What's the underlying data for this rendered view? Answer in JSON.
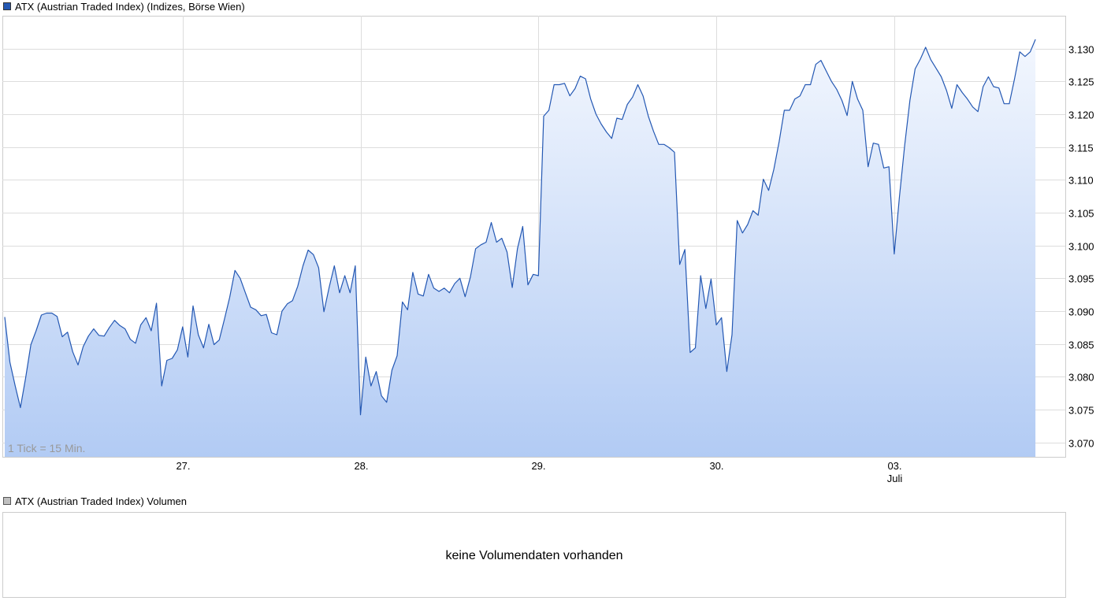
{
  "chart_data": {
    "type": "area-line",
    "series": [
      {
        "name": "ATX (Austrian Traded Index) (Indizes, Börse Wien)",
        "color": "#2458b3",
        "fill_top": "#f3f7fe",
        "fill_bottom": "#b2cbf4",
        "values": [
          3089.1,
          3082.2,
          3078.6,
          3075.3,
          3079.8,
          3084.9,
          3087,
          3089.4,
          3089.7,
          3089.7,
          3089.2,
          3086.1,
          3086.8,
          3083.8,
          3081.8,
          3084.6,
          3086.2,
          3087.3,
          3086.3,
          3086.2,
          3087.5,
          3088.6,
          3087.8,
          3087.3,
          3085.7,
          3085.1,
          3087.9,
          3089,
          3087,
          3091.2,
          3078.6,
          3082.5,
          3082.8,
          3084.1,
          3087.6,
          3083,
          3090.8,
          3086.4,
          3084.4,
          3088,
          3084.9,
          3085.6,
          3088.8,
          3092.1,
          3096.2,
          3095,
          3092.8,
          3090.6,
          3090.2,
          3089.3,
          3089.5,
          3086.7,
          3086.4,
          3090,
          3091.1,
          3091.6,
          3093.8,
          3096.9,
          3099.3,
          3098.6,
          3096.6,
          3089.9,
          3093.6,
          3096.9,
          3092.8,
          3095.4,
          3092.8,
          3096.9,
          3074.2,
          3083,
          3078.6,
          3080.8,
          3077.1,
          3076.1,
          3081,
          3083.2,
          3091.4,
          3090.2,
          3095.9,
          3092.6,
          3092.3,
          3095.6,
          3093.5,
          3093,
          3093.5,
          3092.8,
          3094.2,
          3095,
          3092.2,
          3095.2,
          3099.5,
          3100.1,
          3100.5,
          3103.5,
          3100.5,
          3101.1,
          3099,
          3093.6,
          3099.5,
          3102.9,
          3094,
          3095.6,
          3095.4,
          3119.7,
          3120.6,
          3124.5,
          3124.5,
          3124.7,
          3122.8,
          3123.9,
          3125.8,
          3125.4,
          3122.3,
          3120,
          3118.5,
          3117.3,
          3116.3,
          3119.4,
          3119.2,
          3121.5,
          3122.6,
          3124.5,
          3122.8,
          3119.7,
          3117.4,
          3115.4,
          3115.4,
          3114.9,
          3114.2,
          3097.1,
          3099.4,
          3083.7,
          3084.4,
          3095.4,
          3090.4,
          3094.9,
          3087.9,
          3089,
          3080.8,
          3086.4,
          3103.8,
          3101.9,
          3103.2,
          3105.3,
          3104.6,
          3110.1,
          3108.4,
          3111.6,
          3115.8,
          3120.6,
          3120.6,
          3122.3,
          3122.8,
          3124.5,
          3124.5,
          3127.6,
          3128.2,
          3126.6,
          3125,
          3123.8,
          3122.1,
          3119.8,
          3125,
          3122.3,
          3120.6,
          3112,
          3115.6,
          3115.4,
          3111.8,
          3112,
          3098.7,
          3107.4,
          3115.2,
          3122.1,
          3126.9,
          3128.4,
          3130.2,
          3128.3,
          3127,
          3125.7,
          3123.6,
          3120.9,
          3124.5,
          3123.3,
          3122.3,
          3121.1,
          3120.4,
          3124.2,
          3125.7,
          3124.2,
          3124,
          3121.6,
          3121.6,
          3125.4,
          3129.5,
          3128.8,
          3129.5,
          3131.4
        ]
      }
    ],
    "x": [
      0,
      1,
      2,
      3,
      4,
      5,
      6,
      7,
      8,
      9,
      10,
      11,
      12,
      13,
      14,
      15,
      16,
      17,
      18,
      19,
      20,
      21,
      22,
      23,
      24,
      25,
      26,
      27,
      28,
      29,
      30,
      31,
      32,
      33,
      34,
      35,
      36,
      37,
      38,
      39,
      40,
      41,
      42,
      43,
      44,
      45,
      46,
      47,
      48,
      49,
      50,
      51,
      52,
      53,
      54,
      55,
      56,
      57,
      58,
      59,
      60,
      61,
      62,
      63,
      64,
      65,
      66,
      67,
      68,
      69,
      70,
      71,
      72,
      73,
      74,
      75,
      76,
      77,
      78,
      79,
      80,
      81,
      82,
      83,
      84,
      85,
      86,
      87,
      88,
      89,
      90,
      91,
      92,
      93,
      94,
      95,
      96,
      97,
      98,
      99,
      100,
      101,
      102,
      103,
      104,
      105,
      106,
      107,
      108,
      109,
      110,
      111,
      112,
      113,
      114,
      115,
      116,
      117,
      118,
      119,
      120,
      121,
      122,
      123,
      124,
      125,
      126,
      127,
      128,
      129,
      130,
      131,
      132,
      133,
      134,
      135,
      136,
      137,
      138,
      139,
      140,
      141,
      142,
      143,
      144,
      145,
      146,
      147,
      148,
      149,
      150,
      151,
      152,
      153,
      154,
      155,
      156,
      157,
      158,
      159,
      160,
      161,
      162,
      163,
      164,
      165,
      166,
      167,
      168,
      169,
      170,
      171,
      172,
      173,
      174,
      175,
      176,
      177,
      178,
      179,
      180,
      181,
      182,
      183,
      184,
      185,
      186,
      187,
      188,
      189,
      190,
      191,
      192,
      193,
      194,
      195,
      196,
      197
    ],
    "xlim": [
      -0.45,
      202.7
    ],
    "xticks": [
      {
        "value": 34,
        "label": "27."
      },
      {
        "value": 68,
        "label": "28."
      },
      {
        "value": 102,
        "label": "29."
      },
      {
        "value": 136,
        "label": "30."
      },
      {
        "value": 170,
        "label": "03."
      }
    ],
    "month_label": "Juli",
    "ylim": [
      3067.8,
      3135
    ],
    "yticks": [
      {
        "value": 3070,
        "label": "3.070"
      },
      {
        "value": 3075,
        "label": "3.075"
      },
      {
        "value": 3080,
        "label": "3.080"
      },
      {
        "value": 3085,
        "label": "3.085"
      },
      {
        "value": 3090,
        "label": "3.090"
      },
      {
        "value": 3095,
        "label": "3.095"
      },
      {
        "value": 3100,
        "label": "3.100"
      },
      {
        "value": 3105,
        "label": "3.105"
      },
      {
        "value": 3110,
        "label": "3.110"
      },
      {
        "value": 3115,
        "label": "3.115"
      },
      {
        "value": 3120,
        "label": "3.120"
      },
      {
        "value": 3125,
        "label": "3.125"
      },
      {
        "value": 3130,
        "label": "3.130"
      }
    ],
    "grid": true,
    "annotation": "1 Tick = 15 Min."
  },
  "volume_panel": {
    "title": "ATX (Austrian Traded Index) Volumen",
    "message": "keine Volumendaten vorhanden"
  }
}
